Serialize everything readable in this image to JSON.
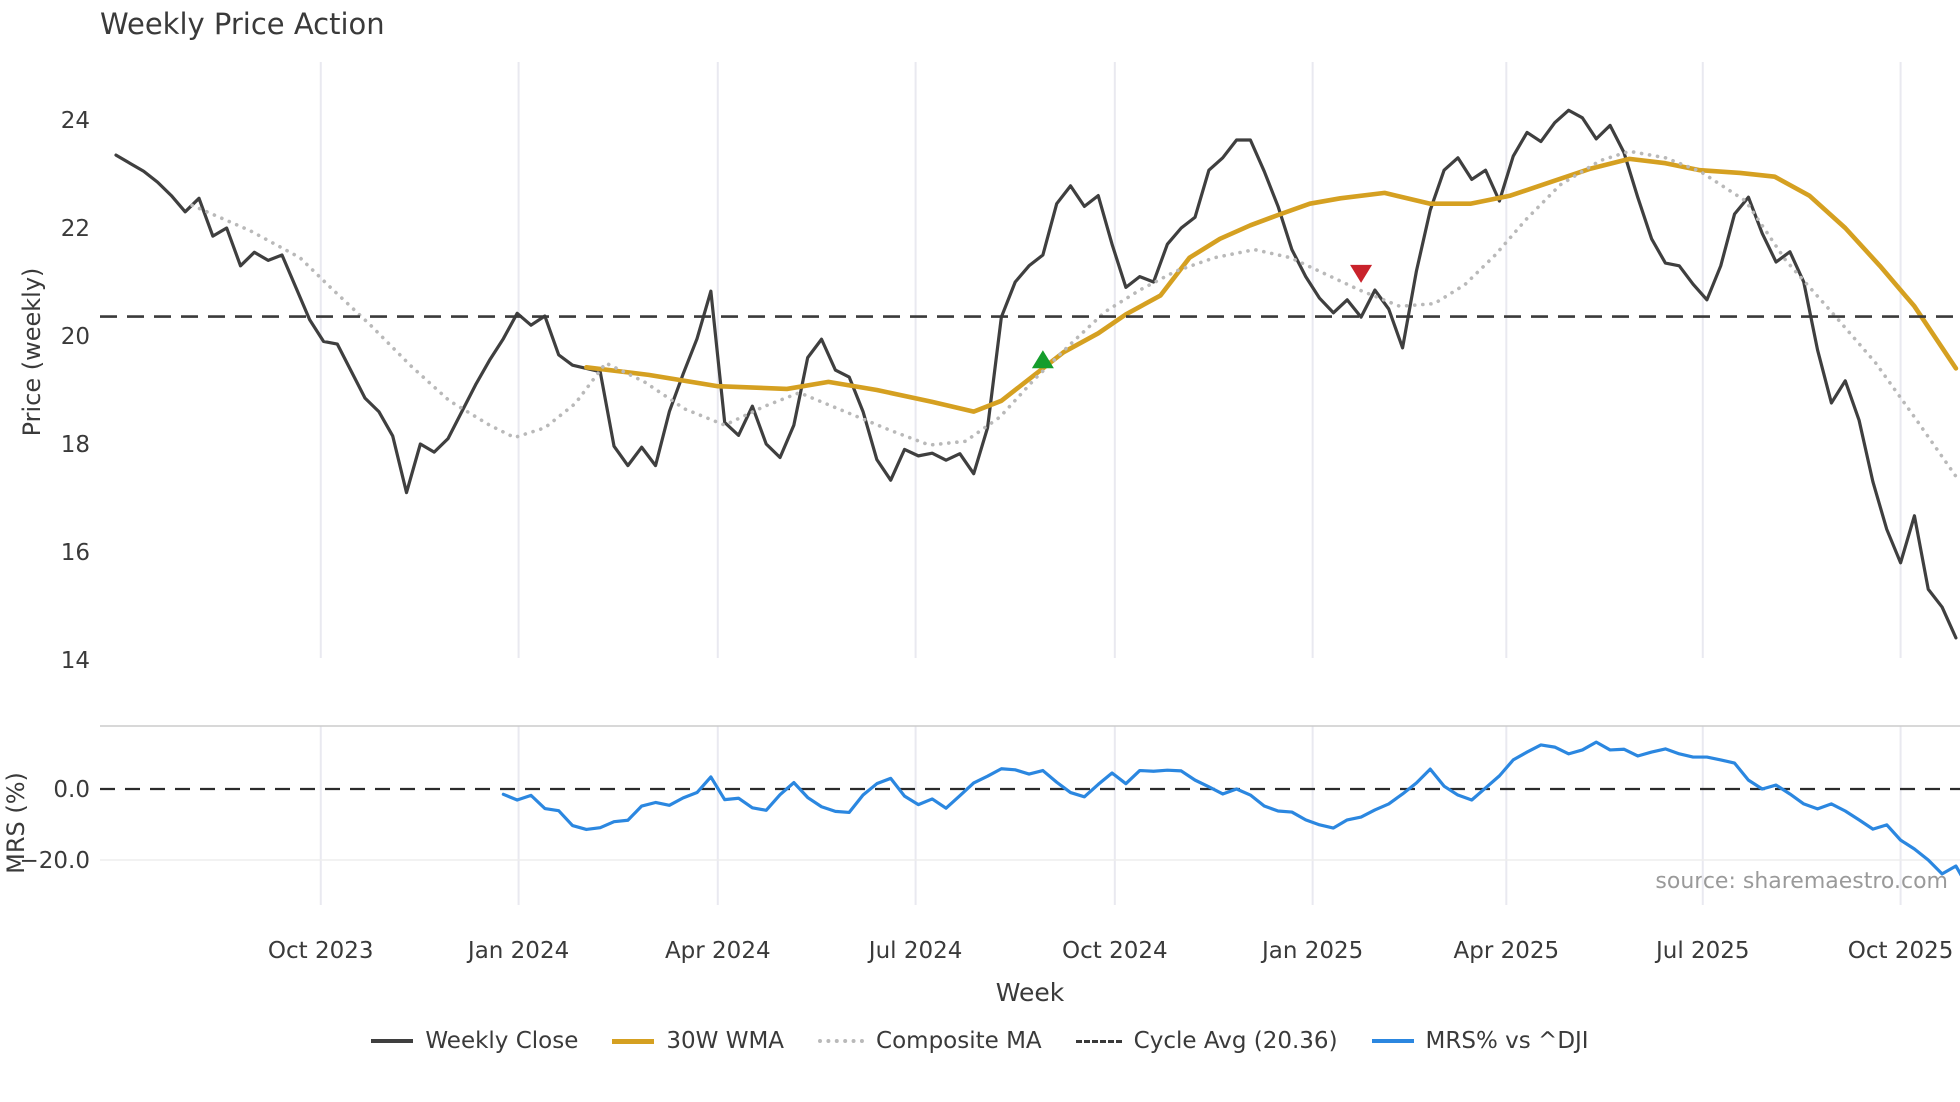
{
  "title": "Weekly Price Action",
  "source": "source: sharemaestro.com",
  "xlabel": "Week",
  "x_axis": {
    "ticks": [
      {
        "label": "Oct 2023",
        "week": 14.8
      },
      {
        "label": "Jan 2024",
        "week": 29.1
      },
      {
        "label": "Apr 2024",
        "week": 43.5
      },
      {
        "label": "Jul 2024",
        "week": 57.8
      },
      {
        "label": "Oct 2024",
        "week": 72.2
      },
      {
        "label": "Jan 2025",
        "week": 86.5
      },
      {
        "label": "Apr 2025",
        "week": 100.5
      },
      {
        "label": "Jul 2025",
        "week": 114.7
      },
      {
        "label": "Oct 2025",
        "week": 129.0
      }
    ]
  },
  "price_panel": {
    "ylabel": "Price (weekly)",
    "ylim": [
      14.0,
      25.0
    ],
    "yticks": [
      {
        "v": 24,
        "label": "24"
      },
      {
        "v": 22,
        "label": "22"
      },
      {
        "v": 20,
        "label": "20"
      },
      {
        "v": 18,
        "label": "18"
      },
      {
        "v": 16,
        "label": "16"
      },
      {
        "v": 14,
        "label": "14"
      }
    ]
  },
  "mrs_panel": {
    "ylabel": "MRS (%)",
    "ylim": [
      -32.5,
      17.7
    ],
    "yticks": [
      {
        "v": 0,
        "label": "0.0"
      },
      {
        "v": -20,
        "label": "−20.0"
      }
    ],
    "minor_gridline_at": -20,
    "zero_line": 0
  },
  "legend": {
    "items": [
      {
        "label": "Weekly Close",
        "swatch": "sw-solid-dark"
      },
      {
        "label": "30W WMA",
        "swatch": "sw-solid-gold"
      },
      {
        "label": "Composite MA",
        "swatch": "sw-dotted-gray"
      },
      {
        "label": "Cycle Avg (20.36)",
        "swatch": "sw-dashed-dark"
      },
      {
        "label": "MRS% vs ^DJI",
        "swatch": "sw-solid-blue"
      }
    ]
  },
  "chart_data": {
    "type": "line",
    "x_unit": "week_index (weekly bars, ~Jul 2023 to ~Oct 2025)",
    "cycle_avg": 20.36,
    "series": [
      {
        "name": "Weekly Close",
        "color": "#3f3f3f",
        "style": "solid",
        "start_week": 0,
        "values": [
          23.35,
          23.2,
          23.05,
          22.85,
          22.6,
          22.3,
          22.55,
          21.85,
          22.0,
          21.3,
          21.55,
          21.4,
          21.5,
          20.9,
          20.3,
          19.9,
          19.85,
          19.35,
          18.85,
          18.6,
          18.15,
          17.1,
          18.0,
          17.85,
          18.1,
          18.6,
          19.1,
          19.55,
          19.95,
          20.42,
          20.2,
          20.37,
          19.65,
          19.46,
          19.4,
          19.34,
          17.96,
          17.6,
          17.94,
          17.6,
          18.6,
          19.3,
          19.95,
          20.83,
          18.4,
          18.16,
          18.7,
          18.0,
          17.75,
          18.35,
          19.6,
          19.94,
          19.37,
          19.24,
          18.6,
          17.71,
          17.33,
          17.9,
          17.78,
          17.83,
          17.7,
          17.82,
          17.45,
          18.3,
          20.35,
          21.0,
          21.3,
          21.5,
          22.45,
          22.78,
          22.4,
          22.6,
          21.7,
          20.9,
          21.1,
          21.0,
          21.7,
          22.0,
          22.2,
          23.07,
          23.3,
          23.63,
          23.63,
          23.05,
          22.4,
          21.6,
          21.1,
          20.7,
          20.43,
          20.67,
          20.35,
          20.85,
          20.5,
          19.78,
          21.2,
          22.33,
          23.07,
          23.3,
          22.9,
          23.07,
          22.5,
          23.33,
          23.77,
          23.6,
          23.95,
          24.18,
          24.04,
          23.65,
          23.9,
          23.4,
          22.57,
          21.8,
          21.35,
          21.3,
          20.96,
          20.67,
          21.3,
          22.26,
          22.57,
          21.9,
          21.37,
          21.56,
          21.0,
          19.74,
          18.76,
          19.17,
          18.44,
          17.3,
          16.42,
          15.8,
          16.67,
          15.31,
          14.98,
          14.41
        ]
      },
      {
        "name": "30W WMA",
        "color": "#d5a021",
        "style": "solid",
        "points": [
          [
            34,
            19.42
          ],
          [
            38.5,
            19.28
          ],
          [
            43.5,
            19.07
          ],
          [
            48.5,
            19.02
          ],
          [
            51.5,
            19.15
          ],
          [
            55,
            19.0
          ],
          [
            59,
            18.78
          ],
          [
            62,
            18.6
          ],
          [
            64,
            18.8
          ],
          [
            66.5,
            19.3
          ],
          [
            68.5,
            19.7
          ],
          [
            71,
            20.05
          ],
          [
            73,
            20.4
          ],
          [
            75.5,
            20.75
          ],
          [
            77.6,
            21.45
          ],
          [
            79.8,
            21.8
          ],
          [
            82,
            22.05
          ],
          [
            84.1,
            22.25
          ],
          [
            86.3,
            22.45
          ],
          [
            88.5,
            22.55
          ],
          [
            91.7,
            22.65
          ],
          [
            95,
            22.45
          ],
          [
            97.9,
            22.45
          ],
          [
            100.8,
            22.6
          ],
          [
            103.7,
            22.85
          ],
          [
            106.6,
            23.1
          ],
          [
            109.4,
            23.28
          ],
          [
            112,
            23.2
          ],
          [
            114.5,
            23.07
          ],
          [
            117.4,
            23.02
          ],
          [
            119.9,
            22.95
          ],
          [
            122.4,
            22.6
          ],
          [
            125,
            22.0
          ],
          [
            127.5,
            21.3
          ],
          [
            130,
            20.55
          ],
          [
            133,
            19.4
          ]
        ]
      },
      {
        "name": "Composite MA",
        "color": "#b9b9b9",
        "style": "dotted",
        "points": [
          [
            5.5,
            22.42
          ],
          [
            9.7,
            21.95
          ],
          [
            13.3,
            21.45
          ],
          [
            15.5,
            20.9
          ],
          [
            18.4,
            20.2
          ],
          [
            21.3,
            19.45
          ],
          [
            24.1,
            18.8
          ],
          [
            27,
            18.35
          ],
          [
            28.8,
            18.12
          ],
          [
            31,
            18.3
          ],
          [
            33.2,
            18.75
          ],
          [
            35.4,
            19.5
          ],
          [
            38.2,
            19.15
          ],
          [
            41.1,
            18.65
          ],
          [
            44,
            18.35
          ],
          [
            46.9,
            18.7
          ],
          [
            49.4,
            18.95
          ],
          [
            52.7,
            18.6
          ],
          [
            56,
            18.25
          ],
          [
            58.8,
            17.98
          ],
          [
            61.4,
            18.05
          ],
          [
            63.9,
            18.5
          ],
          [
            66.4,
            19.2
          ],
          [
            69,
            19.85
          ],
          [
            71.5,
            20.45
          ],
          [
            74,
            20.85
          ],
          [
            76.6,
            21.2
          ],
          [
            79.4,
            21.45
          ],
          [
            82.3,
            21.6
          ],
          [
            84.9,
            21.45
          ],
          [
            87.4,
            21.15
          ],
          [
            89.9,
            20.85
          ],
          [
            92.8,
            20.55
          ],
          [
            95.3,
            20.6
          ],
          [
            97.5,
            20.95
          ],
          [
            99.7,
            21.5
          ],
          [
            101.9,
            22.15
          ],
          [
            104.4,
            22.8
          ],
          [
            107.3,
            23.25
          ],
          [
            109.4,
            23.42
          ],
          [
            112,
            23.3
          ],
          [
            114.5,
            23.05
          ],
          [
            117.8,
            22.5
          ],
          [
            120.7,
            21.4
          ],
          [
            124.3,
            20.36
          ],
          [
            127.2,
            19.5
          ],
          [
            130,
            18.5
          ],
          [
            133,
            17.4
          ]
        ]
      },
      {
        "name": "Cycle Avg (20.36)",
        "color": "#3a3a3a",
        "style": "dashed",
        "value": 20.36
      },
      {
        "name": "MRS% vs ^DJI",
        "color": "#2b87e0",
        "style": "solid",
        "panel": "mrs",
        "start_week": 28,
        "values": [
          -1.5,
          -3.1,
          -1.8,
          -5.5,
          -6.1,
          -10.3,
          -11.4,
          -10.9,
          -9.2,
          -8.8,
          -4.8,
          -3.8,
          -4.6,
          -2.5,
          -1.0,
          3.4,
          -3.0,
          -2.6,
          -5.3,
          -6.0,
          -1.6,
          1.8,
          -2.4,
          -5.0,
          -6.3,
          -6.6,
          -1.7,
          1.5,
          3.0,
          -2.0,
          -4.4,
          -2.8,
          -5.4,
          -1.9,
          1.7,
          3.6,
          5.7,
          5.4,
          4.2,
          5.2,
          1.9,
          -1.0,
          -2.2,
          1.3,
          4.5,
          1.5,
          5.2,
          5.0,
          5.3,
          5.1,
          2.5,
          0.6,
          -1.4,
          0.0,
          -1.7,
          -4.8,
          -6.2,
          -6.5,
          -8.7,
          -10.1,
          -11.0,
          -8.7,
          -7.9,
          -5.9,
          -4.2,
          -1.4,
          1.7,
          5.6,
          0.8,
          -1.7,
          -3.1,
          0.3,
          3.7,
          8.2,
          10.4,
          12.4,
          11.8,
          9.9,
          11.0,
          13.2,
          11.0,
          11.2,
          9.3,
          10.4,
          11.3,
          9.9,
          9.0,
          9.0,
          8.2,
          7.3,
          2.5,
          0.0,
          1.1,
          -1.4,
          -4.2,
          -5.6,
          -4.2,
          -6.2,
          -8.7,
          -11.3,
          -10.1,
          -14.4,
          -16.9,
          -20.0,
          -23.9,
          -21.7,
          -28.5
        ]
      }
    ],
    "markers": [
      {
        "shape": "triangle-up",
        "week": 67,
        "value": 19.55,
        "color": "#159d2c"
      },
      {
        "shape": "triangle-down",
        "week": 90,
        "value": 21.17,
        "color": "#c9222b"
      }
    ]
  }
}
